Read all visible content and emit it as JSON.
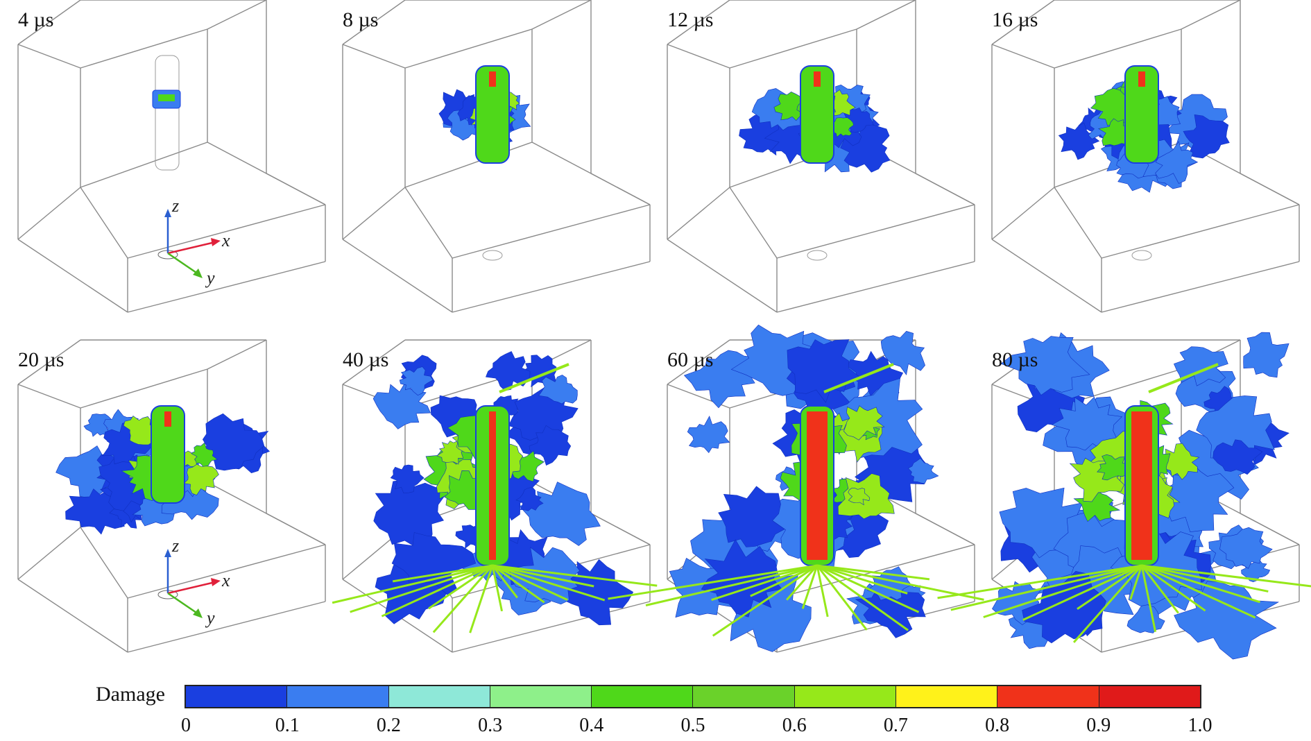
{
  "panels": [
    {
      "label": "4 µs",
      "stage": 0
    },
    {
      "label": "8 µs",
      "stage": 1
    },
    {
      "label": "12 µs",
      "stage": 2
    },
    {
      "label": "16 µs",
      "stage": 3
    },
    {
      "label": "20 µs",
      "stage": 4
    },
    {
      "label": "40 µs",
      "stage": 5
    },
    {
      "label": "60 µs",
      "stage": 6
    },
    {
      "label": "80 µs",
      "stage": 7
    }
  ],
  "axes": {
    "x": "x",
    "y": "y",
    "z": "z"
  },
  "legend": {
    "title": "Damage",
    "ticks": [
      "0",
      "0.1",
      "0.2",
      "0.3",
      "0.4",
      "0.5",
      "0.6",
      "0.7",
      "0.8",
      "0.9",
      "1.0"
    ],
    "colors": [
      "#1a3fe0",
      "#3a7df0",
      "#8ee8d8",
      "#8ef08a",
      "#4fd81a",
      "#6ad22a",
      "#96e81a",
      "#fff21a",
      "#f0321a",
      "#e01a1a"
    ]
  },
  "colors": {
    "box_edge": "#8a8a8a",
    "arrow_x": "#e0203a",
    "arrow_y": "#4cb820",
    "arrow_z": "#2a5fd0"
  }
}
